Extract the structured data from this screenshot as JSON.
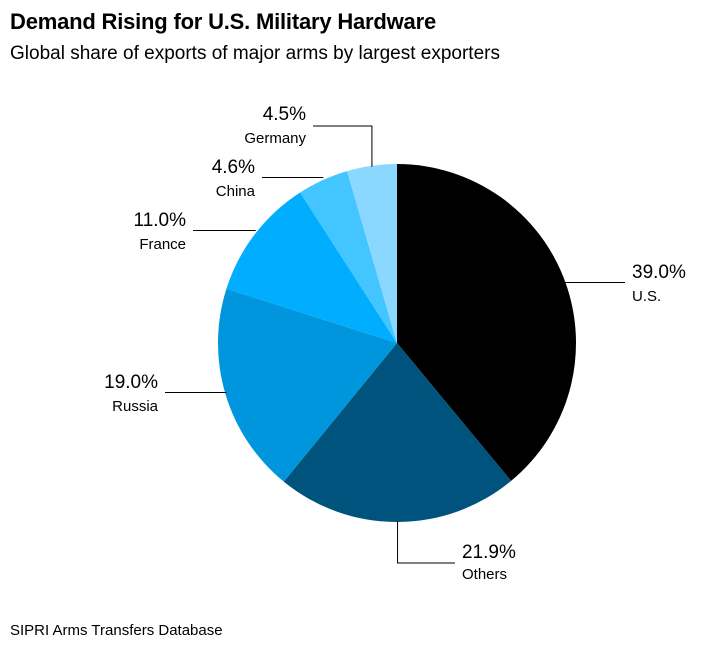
{
  "header": {
    "title": "Demand Rising for U.S. Military Hardware",
    "subtitle": "Global share of exports of major arms by largest exporters"
  },
  "footer": {
    "source": "SIPRI Arms Transfers Database"
  },
  "chart_data": {
    "type": "pie",
    "title": "Demand Rising for U.S. Military Hardware",
    "subtitle": "Global share of exports of major arms by largest exporters",
    "unit": "%",
    "slices": [
      {
        "label": "U.S.",
        "value": 39.0,
        "value_label": "39.0%",
        "color": "#000000"
      },
      {
        "label": "Others",
        "value": 21.9,
        "value_label": "21.9%",
        "color": "#00537c"
      },
      {
        "label": "Russia",
        "value": 19.0,
        "value_label": "19.0%",
        "color": "#0096dd"
      },
      {
        "label": "France",
        "value": 11.0,
        "value_label": "11.0%",
        "color": "#00adfe"
      },
      {
        "label": "China",
        "value": 4.6,
        "value_label": "4.6%",
        "color": "#43c6ff"
      },
      {
        "label": "Germany",
        "value": 4.5,
        "value_label": "4.5%",
        "color": "#8ad8ff"
      }
    ],
    "start": "12 o'clock",
    "direction": "clockwise",
    "legend": "none (direct labels)"
  }
}
